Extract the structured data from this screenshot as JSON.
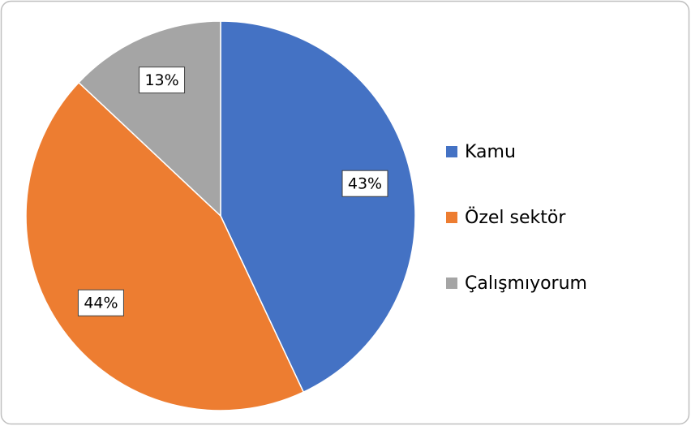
{
  "chart_data": {
    "type": "pie",
    "categories": [
      "Kamu",
      "Özel sektör",
      "Çalışmıyorum"
    ],
    "values": [
      43,
      44,
      13
    ],
    "value_labels": [
      "43%",
      "44%",
      "13%"
    ],
    "colors": [
      "#4472c4",
      "#ed7d31",
      "#a5a5a5"
    ],
    "legend": "right"
  }
}
